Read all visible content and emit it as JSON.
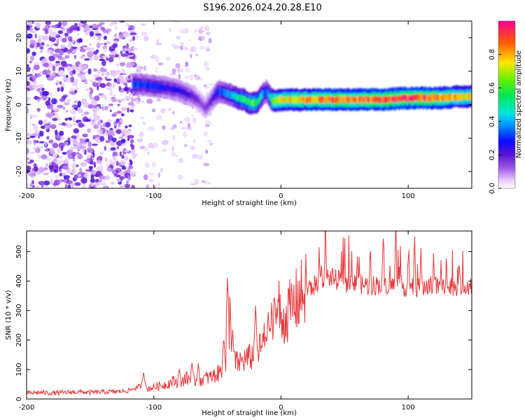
{
  "title": "S196.2026.024.20.28.E10",
  "chart_data": [
    {
      "type": "heatmap",
      "xlabel": "Height of straight line (km)",
      "ylabel": "Frequency (Hz)",
      "xlim": [
        -200,
        150
      ],
      "ylim": [
        -25,
        25
      ],
      "xticks": [
        "-200",
        "-100",
        "0",
        "100"
      ],
      "xtick_values": [
        -200,
        -100,
        0,
        100
      ],
      "yticks": [
        "20",
        "10",
        "0",
        "-10",
        "-20"
      ],
      "ytick_values": [
        20,
        10,
        0,
        -10,
        -20
      ],
      "colorbar": {
        "label": "Normalized spectral amplitude",
        "ticks": [
          "0.0",
          "0.2",
          "0.4",
          "0.6",
          "0.8"
        ],
        "tick_values": [
          0,
          0.2,
          0.4,
          0.6,
          0.8
        ],
        "range": [
          0,
          1
        ]
      },
      "ridge": {
        "x": [
          -117,
          -110,
          -100,
          -90,
          -80,
          -70,
          -65,
          -60,
          -55,
          -50,
          -45,
          -40,
          -35,
          -30,
          -25,
          -20,
          -15,
          -12,
          -8,
          -5,
          0,
          10,
          20,
          40,
          60,
          80,
          100,
          120,
          150
        ],
        "freq": [
          6,
          6,
          5.5,
          5,
          4,
          2.5,
          1,
          -1,
          1.5,
          4,
          3.5,
          3,
          2,
          1.5,
          0.5,
          0.5,
          3,
          4,
          1.5,
          1,
          1.5,
          1.5,
          1.5,
          1.5,
          1.5,
          1.5,
          2,
          2,
          2.5
        ],
        "amplitude": [
          0.35,
          0.3,
          0.3,
          0.25,
          0.25,
          0.2,
          0.15,
          0.15,
          0.2,
          0.3,
          0.35,
          0.4,
          0.5,
          0.55,
          0.6,
          0.6,
          0.4,
          0.3,
          0.6,
          0.7,
          0.75,
          0.75,
          0.8,
          0.85,
          0.85,
          0.9,
          0.9,
          0.85,
          0.7
        ]
      },
      "noise_region_x": [
        -200,
        -115
      ],
      "sparse_region_x": [
        -115,
        -55
      ]
    },
    {
      "type": "line",
      "xlabel": "Height of straight line (km)",
      "ylabel": "SNR (10 * v/v)",
      "xlim": [
        -200,
        150
      ],
      "ylim": [
        0,
        570
      ],
      "xticks": [
        "-200",
        "-100",
        "0",
        "100"
      ],
      "xtick_values": [
        -200,
        -100,
        0,
        100
      ],
      "yticks": [
        "0",
        "100",
        "200",
        "300",
        "400",
        "500"
      ],
      "ytick_values": [
        0,
        100,
        200,
        300,
        400,
        500
      ],
      "color": "#e8383a",
      "series": [
        {
          "name": "SNR",
          "x": [
            -200,
            -190,
            -180,
            -170,
            -160,
            -150,
            -140,
            -130,
            -120,
            -110,
            -105,
            -100,
            -95,
            -90,
            -85,
            -80,
            -75,
            -70,
            -65,
            -60,
            -55,
            -50,
            -45,
            -42,
            -40,
            -38,
            -35,
            -30,
            -25,
            -20,
            -15,
            -10,
            -5,
            -2,
            0,
            5,
            10,
            15,
            20,
            25,
            30,
            35,
            40,
            50,
            60,
            70,
            80,
            90,
            100,
            110,
            120,
            130,
            140,
            150
          ],
          "values": [
            20,
            22,
            20,
            22,
            24,
            22,
            24,
            25,
            28,
            45,
            35,
            40,
            45,
            50,
            60,
            55,
            70,
            65,
            60,
            70,
            75,
            85,
            100,
            150,
            300,
            150,
            120,
            130,
            140,
            150,
            180,
            230,
            270,
            330,
            250,
            290,
            320,
            350,
            370,
            380,
            400,
            420,
            410,
            395,
            390,
            385,
            390,
            385,
            380,
            380,
            385,
            380,
            385,
            390
          ]
        }
      ],
      "spikes": {
        "x": [
          -108,
          -80,
          -70,
          -65,
          -45,
          -42,
          -38,
          -20,
          -10,
          -5,
          30,
          35,
          50,
          60,
          70,
          80,
          90,
          100,
          105,
          110,
          120,
          130,
          140
        ],
        "values": [
          95,
          105,
          125,
          120,
          215,
          415,
          230,
          320,
          300,
          360,
          520,
          570,
          510,
          500,
          490,
          510,
          530,
          510,
          570,
          520,
          505,
          500,
          490
        ]
      }
    }
  ]
}
